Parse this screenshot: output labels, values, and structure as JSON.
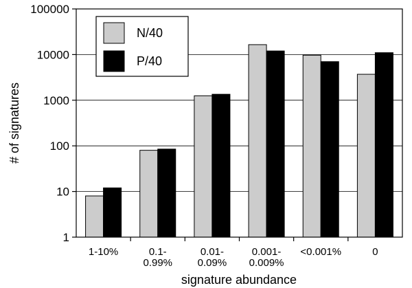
{
  "chart_data": {
    "type": "bar",
    "categories": [
      [
        "1-10%"
      ],
      [
        "0.1-",
        "0.99%"
      ],
      [
        "0.01-",
        "0.09%"
      ],
      [
        "0.001-",
        "0.009%"
      ],
      [
        "<0.001%"
      ],
      [
        "0"
      ]
    ],
    "series": [
      {
        "name": "N/40",
        "color": "#cccccc",
        "values": [
          8,
          80,
          1250,
          16500,
          9700,
          3700
        ]
      },
      {
        "name": "P/40",
        "color": "#000000",
        "values": [
          12,
          85,
          1350,
          12000,
          7000,
          11000
        ]
      }
    ],
    "yscale": "log",
    "ylim": [
      1,
      100000
    ],
    "yticks": [
      1,
      10,
      100,
      1000,
      10000,
      100000
    ],
    "ytick_labels": [
      "1",
      "10",
      "100",
      "1000",
      "10000",
      "100000"
    ],
    "xlabel": "signature abundance",
    "ylabel": "# of signatures",
    "grid": "horizontal",
    "legend_position": "top-left"
  }
}
